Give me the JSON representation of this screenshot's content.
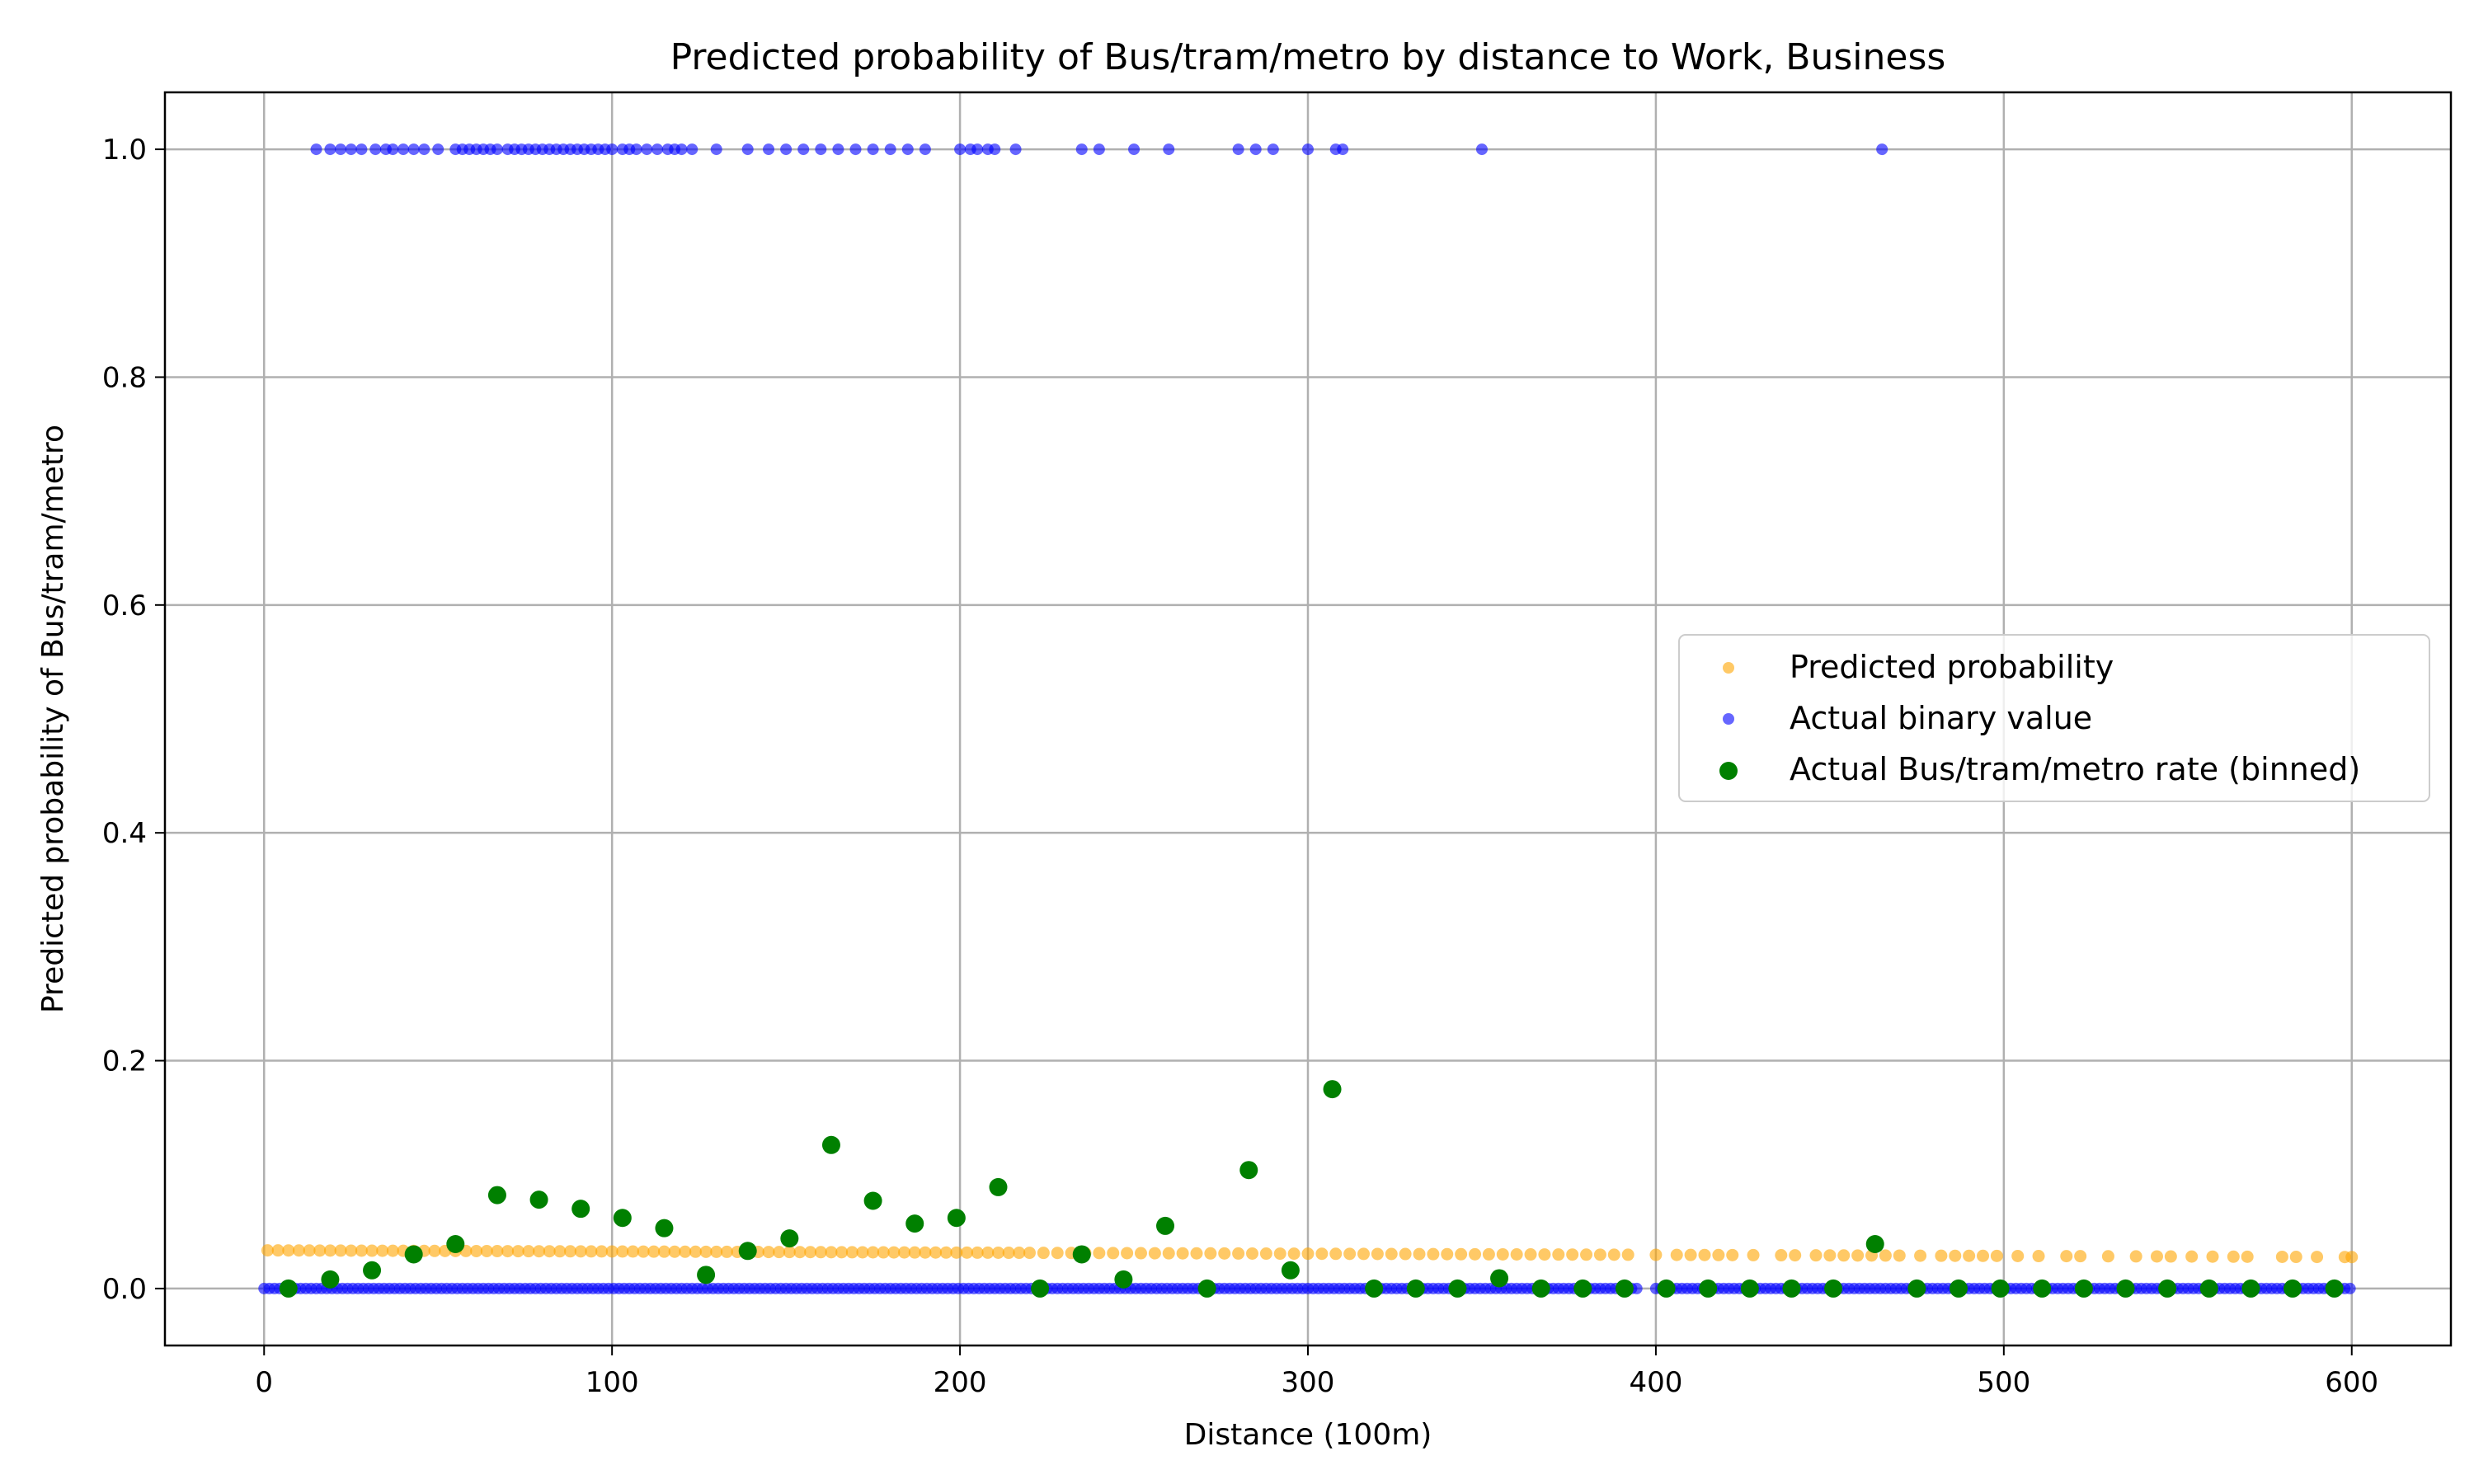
{
  "chart_data": {
    "type": "scatter",
    "title": "Predicted probability of Bus/tram/metro by distance to Work, Business",
    "xlabel": "Distance (100m)",
    "ylabel": "Predicted probability of Bus/tram/metro",
    "xlim": [
      -28.5,
      628.5
    ],
    "ylim": [
      -0.05,
      1.05
    ],
    "x_ticks": [
      0,
      100,
      200,
      300,
      400,
      500,
      600
    ],
    "y_ticks": [
      0.0,
      0.2,
      0.4,
      0.6,
      0.8,
      1.0
    ],
    "x_tick_labels": [
      "0",
      "100",
      "200",
      "300",
      "400",
      "500",
      "600"
    ],
    "y_tick_labels": [
      "0.0",
      "0.2",
      "0.4",
      "0.6",
      "0.8",
      "1.0"
    ],
    "grid": true,
    "legend_position": "center-right",
    "colors": {
      "predicted": "#FFA500",
      "actual": "#0000FF",
      "binned": "#008000"
    },
    "series": [
      {
        "name": "Predicted probability",
        "color": "#FFA500",
        "marker_alpha": 0.6,
        "fit": {
          "intercept": 0.0335,
          "slope_per_unit": -9.8e-06
        },
        "x": [
          1,
          4,
          7,
          10,
          13,
          16,
          19,
          22,
          25,
          28,
          31,
          34,
          37,
          40,
          43,
          46,
          49,
          52,
          55,
          58,
          61,
          64,
          67,
          70,
          73,
          76,
          79,
          82,
          85,
          88,
          91,
          94,
          97,
          100,
          103,
          106,
          109,
          112,
          115,
          118,
          121,
          124,
          127,
          130,
          133,
          136,
          139,
          142,
          145,
          148,
          151,
          154,
          157,
          160,
          163,
          166,
          169,
          172,
          175,
          178,
          181,
          184,
          187,
          190,
          193,
          196,
          199,
          202,
          205,
          208,
          211,
          214,
          217,
          220,
          224,
          228,
          232,
          236,
          240,
          244,
          248,
          252,
          256,
          260,
          264,
          268,
          272,
          276,
          280,
          284,
          288,
          292,
          296,
          300,
          304,
          308,
          312,
          316,
          320,
          324,
          328,
          332,
          336,
          340,
          344,
          348,
          352,
          356,
          360,
          364,
          368,
          372,
          376,
          380,
          384,
          388,
          392,
          400,
          406,
          410,
          414,
          418,
          422,
          428,
          436,
          440,
          446,
          450,
          454,
          458,
          462,
          466,
          470,
          476,
          482,
          486,
          490,
          494,
          498,
          504,
          510,
          518,
          522,
          530,
          538,
          544,
          548,
          554,
          560,
          566,
          570,
          580,
          584,
          590,
          598,
          600
        ]
      },
      {
        "name": "Actual binary value",
        "color": "#0000FF",
        "marker_alpha": 0.6,
        "points_y1_x": [
          15,
          19,
          22,
          25,
          28,
          32,
          35,
          37,
          40,
          43,
          46,
          50,
          55,
          57,
          59,
          61,
          63,
          65,
          67,
          70,
          72,
          74,
          76,
          78,
          80,
          82,
          84,
          86,
          88,
          90,
          92,
          94,
          96,
          98,
          100,
          103,
          105,
          107,
          110,
          113,
          116,
          118,
          120,
          123,
          130,
          139,
          145,
          150,
          155,
          160,
          165,
          170,
          175,
          180,
          185,
          190,
          200,
          203,
          205,
          208,
          210,
          216,
          235,
          240,
          250,
          260,
          280,
          285,
          290,
          300,
          308,
          310,
          350,
          465
        ],
        "zero_line_x_ranges": [
          [
            0,
            395
          ],
          [
            400,
            600
          ]
        ]
      },
      {
        "name": "Actual Bus/tram/metro rate (binned)",
        "color": "#008000",
        "marker_alpha": 1.0,
        "x": [
          7,
          19,
          31,
          43,
          55,
          67,
          79,
          91,
          103,
          115,
          127,
          139,
          151,
          163,
          175,
          187,
          199,
          211,
          223,
          235,
          247,
          259,
          271,
          283,
          295,
          307,
          319,
          331,
          343,
          355,
          367,
          379,
          391,
          403,
          415,
          427,
          439,
          451,
          463,
          475,
          487,
          499,
          511,
          523,
          535,
          547,
          559,
          571,
          583,
          595
        ],
        "y": [
          0.0,
          0.008,
          0.016,
          0.03,
          0.039,
          0.082,
          0.078,
          0.07,
          0.062,
          0.053,
          0.012,
          0.033,
          0.044,
          0.126,
          0.077,
          0.057,
          0.062,
          0.089,
          0.0,
          0.03,
          0.008,
          0.055,
          0.0,
          0.104,
          0.016,
          0.175,
          0.0,
          0.0,
          0.0,
          0.009,
          0.0,
          0.0,
          0.0,
          0.0,
          0.0,
          0.0,
          0.0,
          0.0,
          0.039,
          0.0,
          0.0,
          0.0,
          0.0,
          0.0,
          0.0,
          0.0,
          0.0,
          0.0,
          0.0,
          0.0
        ]
      }
    ]
  }
}
